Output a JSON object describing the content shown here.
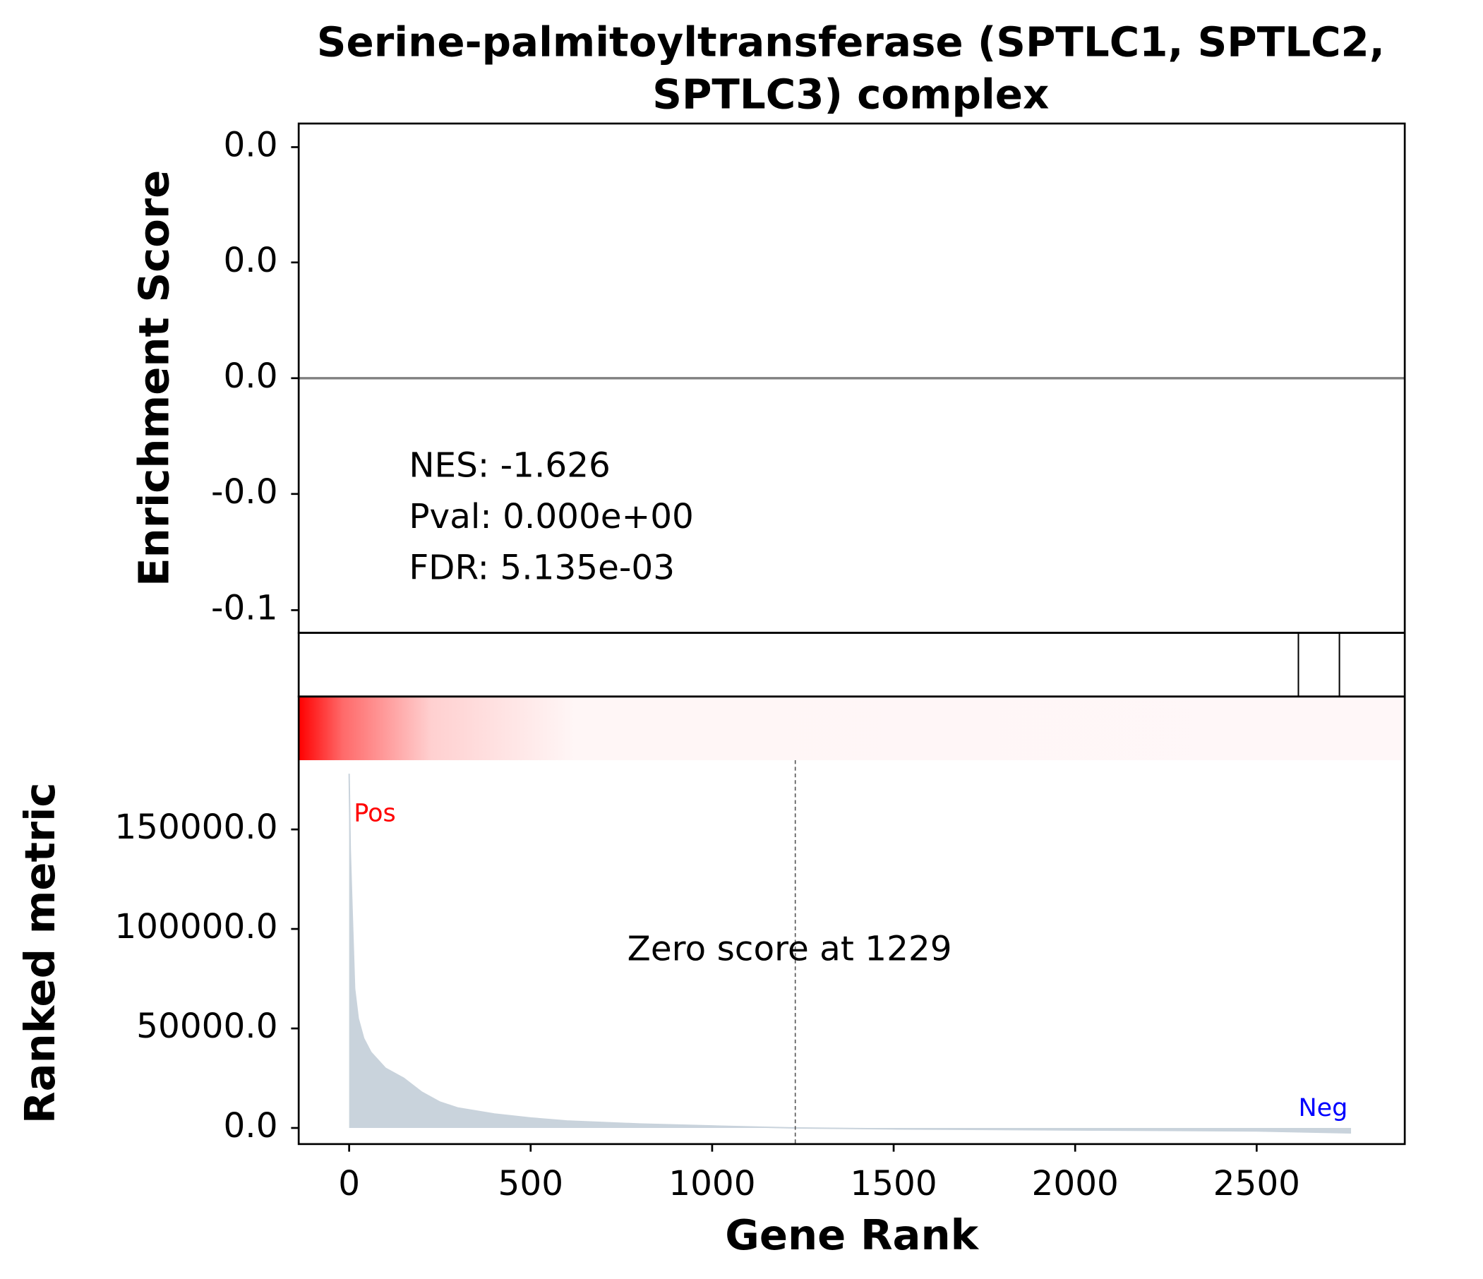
{
  "chart_data": [
    {
      "type": "line",
      "title": [
        "Serine-palmitoyltransferase (SPTLC1, SPTLC2,",
        "SPTLC3) complex"
      ],
      "ylabel": "Enrichment Score",
      "ylim": [
        -0.055,
        0.055
      ],
      "yticks": [
        {
          "value": 0.0499,
          "label": "0.0"
        },
        {
          "value": 0.025,
          "label": "0.0"
        },
        {
          "value": 0,
          "label": "0.0"
        },
        {
          "value": -0.025,
          "label": "-0.0"
        },
        {
          "value": -0.0501,
          "label": "-0.1"
        }
      ],
      "xlim": [
        -139,
        2908
      ],
      "annotations": [
        "NES: -1.626",
        "Pval: 0.000e+00",
        "FDR: 5.135e-03"
      ],
      "hits": [
        2615,
        2728
      ]
    },
    {
      "type": "area",
      "xlabel": "Gene Rank",
      "ylabel": "Ranked metric",
      "x": [
        0,
        3,
        8,
        15,
        25,
        40,
        60,
        100,
        150,
        200,
        250,
        300,
        400,
        500,
        600,
        800,
        1000,
        1229,
        1500,
        2000,
        2500,
        2760
      ],
      "values": [
        178000,
        140000,
        110000,
        70000,
        55000,
        45000,
        38000,
        30000,
        25000,
        18000,
        13000,
        10000,
        7000,
        5000,
        3500,
        2000,
        1000,
        0,
        -500,
        -1000,
        -1500,
        -2500
      ],
      "color": "#c9d3dc",
      "xlim": [
        -139,
        2908
      ],
      "xticks": [
        0,
        500,
        1000,
        1500,
        2000,
        2500
      ],
      "ylim": [
        -8100,
        184800
      ],
      "yticks": [
        {
          "value": 0,
          "label": "0.0"
        },
        {
          "value": 50000,
          "label": "50000.0"
        },
        {
          "value": 100000,
          "label": "100000.0"
        },
        {
          "value": 150000,
          "label": "150000.0"
        }
      ],
      "zero_score_rank": 1229,
      "zero_score_label": "Zero score at 1229",
      "pos_label": "Pos",
      "neg_label": "Neg"
    }
  ]
}
